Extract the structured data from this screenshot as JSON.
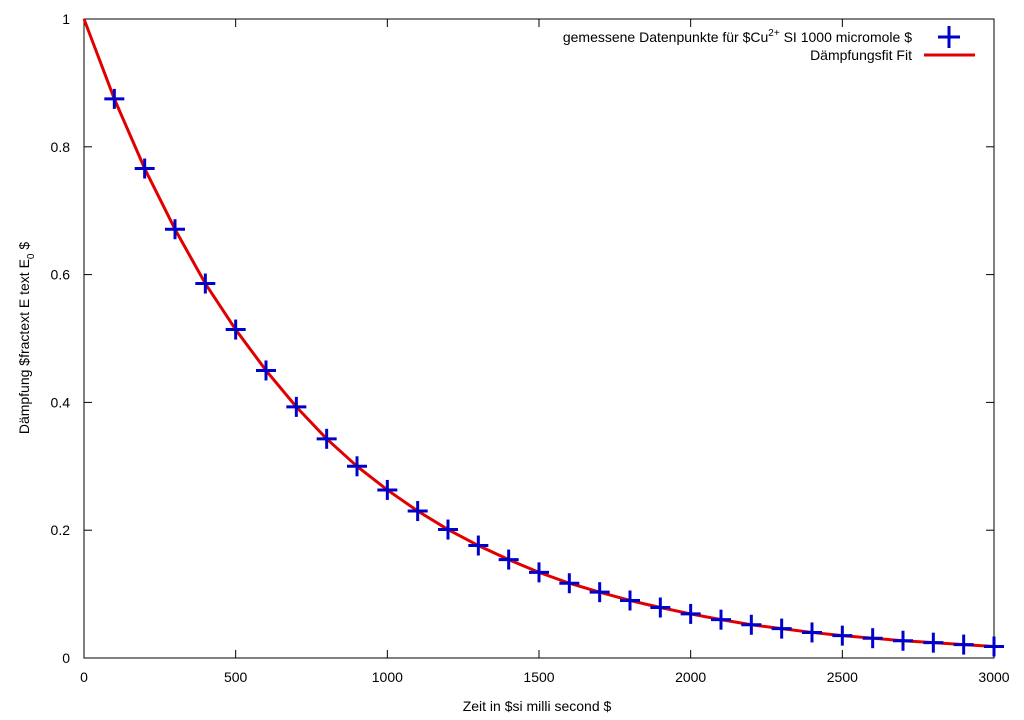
{
  "chart_data": {
    "type": "scatter",
    "xlabel": "Zeit in $si milli second $",
    "ylabel_parts": [
      "Dämpfung $fractext E text E",
      "0",
      " $"
    ],
    "xlim": [
      0,
      3000
    ],
    "ylim": [
      0,
      1
    ],
    "x_ticks": [
      0,
      500,
      1000,
      1500,
      2000,
      2500,
      3000
    ],
    "y_ticks": [
      0,
      0.2,
      0.4,
      0.6,
      0.8,
      1
    ],
    "x_tick_labels": [
      "0",
      "500",
      "1000",
      "1500",
      "2000",
      "2500",
      "3000"
    ],
    "y_tick_labels": [
      "0",
      "0.2",
      "0.4",
      "0.6",
      "0.8",
      "1"
    ],
    "grid": false,
    "legend_position": "top-right",
    "legend": {
      "points_label_main": "gemessene Datenpunkte für $Cu",
      "points_label_sup": "2+",
      "points_label_tail": " SI 1000 micromole $",
      "fit_label": "Dämpfungsfit Fit"
    },
    "series": [
      {
        "kind": "points",
        "marker": "plus",
        "color": "#0000cc",
        "x": [
          100,
          200,
          300,
          400,
          500,
          600,
          700,
          800,
          900,
          1000,
          1100,
          1200,
          1300,
          1400,
          1500,
          1600,
          1700,
          1800,
          1900,
          2000,
          2100,
          2200,
          2300,
          2400,
          2500,
          2600,
          2700,
          2800,
          2900,
          3000
        ],
        "y": [
          0.875,
          0.766,
          0.671,
          0.586,
          0.514,
          0.45,
          0.393,
          0.343,
          0.3,
          0.263,
          0.23,
          0.201,
          0.176,
          0.154,
          0.134,
          0.117,
          0.103,
          0.09,
          0.079,
          0.069,
          0.06,
          0.052,
          0.046,
          0.04,
          0.035,
          0.031,
          0.027,
          0.024,
          0.021,
          0.018
        ]
      },
      {
        "kind": "line",
        "color": "#e00000",
        "x": [
          0,
          100,
          200,
          300,
          400,
          500,
          600,
          700,
          800,
          900,
          1000,
          1100,
          1200,
          1300,
          1400,
          1500,
          1600,
          1700,
          1800,
          1900,
          2000,
          2100,
          2200,
          2300,
          2400,
          2500,
          2600,
          2700,
          2800,
          2900,
          3000
        ],
        "y": [
          1.0,
          0.875,
          0.766,
          0.671,
          0.586,
          0.514,
          0.45,
          0.393,
          0.343,
          0.3,
          0.263,
          0.23,
          0.201,
          0.176,
          0.154,
          0.134,
          0.117,
          0.103,
          0.09,
          0.079,
          0.069,
          0.06,
          0.052,
          0.046,
          0.04,
          0.035,
          0.031,
          0.027,
          0.024,
          0.021,
          0.018
        ]
      }
    ]
  }
}
